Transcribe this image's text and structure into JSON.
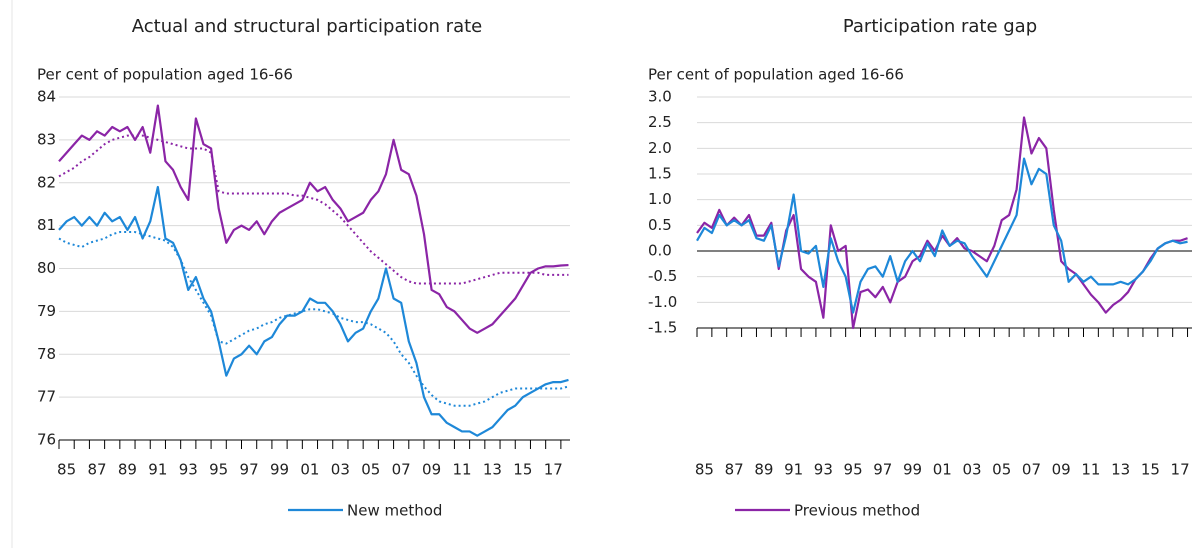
{
  "chart_data": [
    {
      "type": "line",
      "title": "Actual and structural participation rate",
      "subtitle": "Per cent of population aged 16-66",
      "x": [
        1984.5,
        1985,
        1985.5,
        1986,
        1986.5,
        1987,
        1987.5,
        1988,
        1988.5,
        1989,
        1989.5,
        1990,
        1990.5,
        1991,
        1991.5,
        1992,
        1992.5,
        1993,
        1993.5,
        1994,
        1994.5,
        1995,
        1995.5,
        1996,
        1996.5,
        1997,
        1997.5,
        1998,
        1998.5,
        1999,
        1999.5,
        2000,
        2000.5,
        2001,
        2001.5,
        2002,
        2002.5,
        2003,
        2003.5,
        2004,
        2004.5,
        2005,
        2005.5,
        2006,
        2006.5,
        2007,
        2007.5,
        2008,
        2008.5,
        2009,
        2009.5,
        2010,
        2010.5,
        2011,
        2011.5,
        2012,
        2012.5,
        2013,
        2013.5,
        2014,
        2014.5,
        2015,
        2015.5,
        2016,
        2016.5,
        2017,
        2017.5,
        2018
      ],
      "series": [
        {
          "color": "#8b25a6",
          "style": "solid",
          "values": [
            82.5,
            82.7,
            82.9,
            83.1,
            83.0,
            83.2,
            83.1,
            83.3,
            83.2,
            83.3,
            83.0,
            83.3,
            82.7,
            83.8,
            82.5,
            82.3,
            81.9,
            81.6,
            83.5,
            82.9,
            82.8,
            81.4,
            80.6,
            80.9,
            81.0,
            80.9,
            81.1,
            80.8,
            81.1,
            81.3,
            81.4,
            81.5,
            81.6,
            82.0,
            81.8,
            81.9,
            81.6,
            81.4,
            81.1,
            81.2,
            81.3,
            81.6,
            81.8,
            82.2,
            83.0,
            82.3,
            82.2,
            81.7,
            80.8,
            79.5,
            79.4,
            79.1,
            79.0,
            78.8,
            78.6,
            78.5,
            78.6,
            78.7,
            78.9,
            79.1,
            79.3,
            79.6,
            79.9,
            80.0,
            80.05,
            80.05,
            80.07,
            80.08
          ]
        },
        {
          "color": "#8b25a6",
          "style": "dotted",
          "values": [
            82.15,
            82.25,
            82.35,
            82.5,
            82.6,
            82.75,
            82.9,
            83.0,
            83.05,
            83.1,
            83.1,
            83.1,
            83.05,
            83.0,
            82.95,
            82.9,
            82.85,
            82.8,
            82.8,
            82.8,
            82.7,
            81.8,
            81.75,
            81.75,
            81.75,
            81.75,
            81.75,
            81.75,
            81.75,
            81.75,
            81.75,
            81.7,
            81.7,
            81.65,
            81.6,
            81.5,
            81.35,
            81.2,
            81.0,
            80.8,
            80.6,
            80.4,
            80.25,
            80.1,
            79.95,
            79.8,
            79.7,
            79.65,
            79.65,
            79.65,
            79.65,
            79.65,
            79.65,
            79.65,
            79.7,
            79.75,
            79.8,
            79.85,
            79.9,
            79.9,
            79.9,
            79.9,
            79.9,
            79.9,
            79.85,
            79.85,
            79.85,
            79.85
          ]
        },
        {
          "color": "#1e88d8",
          "style": "solid",
          "values": [
            80.9,
            81.1,
            81.2,
            81.0,
            81.2,
            81.0,
            81.3,
            81.1,
            81.2,
            80.9,
            81.2,
            80.7,
            81.1,
            81.9,
            80.7,
            80.6,
            80.2,
            79.5,
            79.8,
            79.3,
            79.0,
            78.3,
            77.5,
            77.9,
            78.0,
            78.2,
            78.0,
            78.3,
            78.4,
            78.7,
            78.9,
            78.9,
            79.0,
            79.3,
            79.2,
            79.2,
            79.0,
            78.7,
            78.3,
            78.5,
            78.6,
            79.0,
            79.3,
            80.0,
            79.3,
            79.2,
            78.3,
            77.8,
            77.0,
            76.6,
            76.6,
            76.4,
            76.3,
            76.2,
            76.2,
            76.1,
            76.2,
            76.3,
            76.5,
            76.7,
            76.8,
            77.0,
            77.1,
            77.2,
            77.3,
            77.35,
            77.35,
            77.4
          ]
        },
        {
          "color": "#1e88d8",
          "style": "dotted",
          "values": [
            80.7,
            80.6,
            80.55,
            80.5,
            80.6,
            80.65,
            80.7,
            80.8,
            80.85,
            80.85,
            80.85,
            80.8,
            80.75,
            80.7,
            80.65,
            80.5,
            80.2,
            79.8,
            79.5,
            79.2,
            78.9,
            78.3,
            78.25,
            78.35,
            78.45,
            78.55,
            78.6,
            78.7,
            78.75,
            78.85,
            78.9,
            78.95,
            79.0,
            79.05,
            79.05,
            79.0,
            78.95,
            78.85,
            78.8,
            78.75,
            78.75,
            78.7,
            78.6,
            78.5,
            78.3,
            78.0,
            77.8,
            77.5,
            77.25,
            77.05,
            76.9,
            76.85,
            76.8,
            76.8,
            76.8,
            76.85,
            76.9,
            77.0,
            77.1,
            77.15,
            77.2,
            77.2,
            77.2,
            77.2,
            77.2,
            77.2,
            77.2,
            77.25
          ]
        }
      ],
      "xlim": [
        1984.5,
        2018.1
      ],
      "xticks": [
        {
          "value": 1985,
          "label": "85"
        },
        {
          "value": 1987,
          "label": "87"
        },
        {
          "value": 1989,
          "label": "89"
        },
        {
          "value": 1991,
          "label": "91"
        },
        {
          "value": 1993,
          "label": "93"
        },
        {
          "value": 1995,
          "label": "95"
        },
        {
          "value": 1997,
          "label": "97"
        },
        {
          "value": 1999,
          "label": "99"
        },
        {
          "value": 2001,
          "label": "01"
        },
        {
          "value": 2003,
          "label": "03"
        },
        {
          "value": 2005,
          "label": "05"
        },
        {
          "value": 2007,
          "label": "07"
        },
        {
          "value": 2009,
          "label": "09"
        },
        {
          "value": 2011,
          "label": "11"
        },
        {
          "value": 2013,
          "label": "13"
        },
        {
          "value": 2015,
          "label": "15"
        },
        {
          "value": 2017,
          "label": "17"
        }
      ],
      "xtick_marks": [
        1984.5,
        1985.5,
        1986.5,
        1987.5,
        1988.5,
        1989.5,
        1990.5,
        1991.5,
        1992.5,
        1993.5,
        1994.5,
        1995.5,
        1996.5,
        1997.5,
        1998.5,
        1999.5,
        2000.5,
        2001.5,
        2002.5,
        2003.5,
        2004.5,
        2005.5,
        2006.5,
        2007.5,
        2008.5,
        2009.5,
        2010.5,
        2011.5,
        2012.5,
        2013.5,
        2014.5,
        2015.5,
        2016.5,
        2017.5
      ],
      "ylim": [
        76,
        84
      ],
      "yticks": [
        76,
        77,
        78,
        79,
        80,
        81,
        82,
        83,
        84
      ],
      "grid": true
    },
    {
      "type": "line",
      "title": "Participation rate gap",
      "subtitle": "Per cent of population aged 16-66",
      "x": [
        1984.5,
        1985,
        1985.5,
        1986,
        1986.5,
        1987,
        1987.5,
        1988,
        1988.5,
        1989,
        1989.5,
        1990,
        1990.5,
        1991,
        1991.5,
        1992,
        1992.5,
        1993,
        1993.5,
        1994,
        1994.5,
        1995,
        1995.5,
        1996,
        1996.5,
        1997,
        1997.5,
        1998,
        1998.5,
        1999,
        1999.5,
        2000,
        2000.5,
        2001,
        2001.5,
        2002,
        2002.5,
        2003,
        2003.5,
        2004,
        2004.5,
        2005,
        2005.5,
        2006,
        2006.5,
        2007,
        2007.5,
        2008,
        2008.5,
        2009,
        2009.5,
        2010,
        2010.5,
        2011,
        2011.5,
        2012,
        2012.5,
        2013,
        2013.5,
        2014,
        2014.5,
        2015,
        2015.5,
        2016,
        2016.5,
        2017,
        2017.5
      ],
      "series": [
        {
          "color": "#8b25a6",
          "style": "solid",
          "values": [
            0.35,
            0.55,
            0.45,
            0.8,
            0.5,
            0.65,
            0.5,
            0.7,
            0.3,
            0.3,
            0.55,
            -0.35,
            0.4,
            0.7,
            -0.35,
            -0.5,
            -0.6,
            -1.3,
            0.5,
            0,
            0.1,
            -1.5,
            -0.8,
            -0.75,
            -0.9,
            -0.7,
            -1.0,
            -0.6,
            -0.5,
            -0.2,
            -0.1,
            0.2,
            0,
            0.3,
            0.1,
            0.25,
            0.05,
            0,
            -0.1,
            -0.2,
            0.1,
            0.6,
            0.7,
            1.2,
            2.6,
            1.9,
            2.2,
            2.0,
            0.8,
            -0.2,
            -0.35,
            -0.45,
            -0.65,
            -0.85,
            -1.0,
            -1.2,
            -1.05,
            -0.95,
            -0.8,
            -0.55,
            -0.4,
            -0.15,
            0.05,
            0.15,
            0.2,
            0.2,
            0.25
          ]
        },
        {
          "color": "#1e88d8",
          "style": "solid",
          "values": [
            0.2,
            0.45,
            0.35,
            0.7,
            0.5,
            0.6,
            0.5,
            0.6,
            0.25,
            0.2,
            0.5,
            -0.3,
            0.3,
            1.1,
            0,
            -0.05,
            0.1,
            -0.7,
            0.25,
            -0.2,
            -0.5,
            -1.2,
            -0.6,
            -0.35,
            -0.3,
            -0.5,
            -0.1,
            -0.6,
            -0.2,
            0,
            -0.2,
            0.15,
            -0.1,
            0.4,
            0.1,
            0.2,
            0.15,
            -0.1,
            -0.3,
            -0.5,
            -0.2,
            0.1,
            0.4,
            0.7,
            1.8,
            1.3,
            1.6,
            1.5,
            0.5,
            0.2,
            -0.6,
            -0.45,
            -0.6,
            -0.5,
            -0.65,
            -0.65,
            -0.65,
            -0.6,
            -0.65,
            -0.55,
            -0.4,
            -0.2,
            0.05,
            0.15,
            0.2,
            0.15,
            0.18
          ]
        }
      ],
      "xlim": [
        1984.5,
        2017.8
      ],
      "xticks": [
        {
          "value": 1985,
          "label": "85"
        },
        {
          "value": 1987,
          "label": "87"
        },
        {
          "value": 1989,
          "label": "89"
        },
        {
          "value": 1991,
          "label": "91"
        },
        {
          "value": 1993,
          "label": "93"
        },
        {
          "value": 1995,
          "label": "95"
        },
        {
          "value": 1997,
          "label": "97"
        },
        {
          "value": 1999,
          "label": "99"
        },
        {
          "value": 2001,
          "label": "01"
        },
        {
          "value": 2003,
          "label": "03"
        },
        {
          "value": 2005,
          "label": "05"
        },
        {
          "value": 2007,
          "label": "07"
        },
        {
          "value": 2009,
          "label": "09"
        },
        {
          "value": 2011,
          "label": "11"
        },
        {
          "value": 2013,
          "label": "13"
        },
        {
          "value": 2015,
          "label": "15"
        },
        {
          "value": 2017,
          "label": "17"
        }
      ],
      "xtick_marks": [
        1984.5,
        1985.5,
        1986.5,
        1987.5,
        1988.5,
        1989.5,
        1990.5,
        1991.5,
        1992.5,
        1993.5,
        1994.5,
        1995.5,
        1996.5,
        1997.5,
        1998.5,
        1999.5,
        2000.5,
        2001.5,
        2002.5,
        2003.5,
        2004.5,
        2005.5,
        2006.5,
        2007.5,
        2008.5,
        2009.5,
        2010.5,
        2011.5,
        2012.5,
        2013.5,
        2014.5,
        2015.5,
        2016.5,
        2017.5
      ],
      "ylim": [
        -1.5,
        3
      ],
      "yticks": [
        -1.5,
        {
          "value": -1,
          "label": "-1.0"
        },
        -0.5,
        {
          "value": 0,
          "label": "0.0"
        },
        0.5,
        {
          "value": 1,
          "label": "1.0"
        },
        1.5,
        {
          "value": 2,
          "label": "2.0"
        },
        2.5,
        {
          "value": 3,
          "label": "3.0"
        }
      ],
      "grid": true,
      "baseline": 0
    }
  ],
  "legend": [
    {
      "name": "New method",
      "color": "#1e88d8"
    },
    {
      "name": "Previous method",
      "color": "#8b25a6"
    }
  ]
}
